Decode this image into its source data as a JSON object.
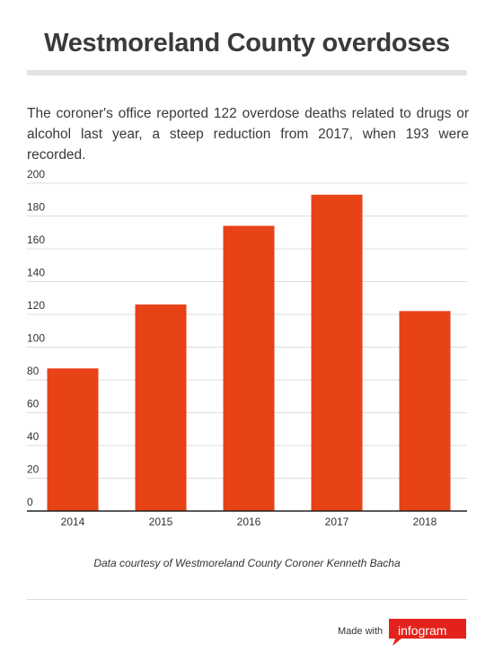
{
  "title": "Westmoreland County overdoses",
  "subtitle": "The coroner's office reported 122 overdose deaths related to drugs or alcohol last year, a steep reduction from 2017, when 193 were recorded.",
  "source": "Data courtesy of Westmoreland County Coroner Kenneth Bacha",
  "footer": {
    "made_with": "Made with",
    "brand": "infogram"
  },
  "colors": {
    "bar": "#e84217",
    "brand": "#e3231b",
    "text": "#3a3a3a",
    "grid": "#dddddd",
    "axis": "#222222"
  },
  "chart_data": {
    "type": "bar",
    "categories": [
      "2014",
      "2015",
      "2016",
      "2017",
      "2018"
    ],
    "values": [
      87,
      126,
      174,
      193,
      122
    ],
    "title": "",
    "xlabel": "",
    "ylabel": "",
    "ylim": [
      0,
      200
    ],
    "yticks": [
      0,
      20,
      40,
      60,
      80,
      100,
      120,
      140,
      160,
      180,
      200
    ],
    "grid": true,
    "legend": "none"
  }
}
